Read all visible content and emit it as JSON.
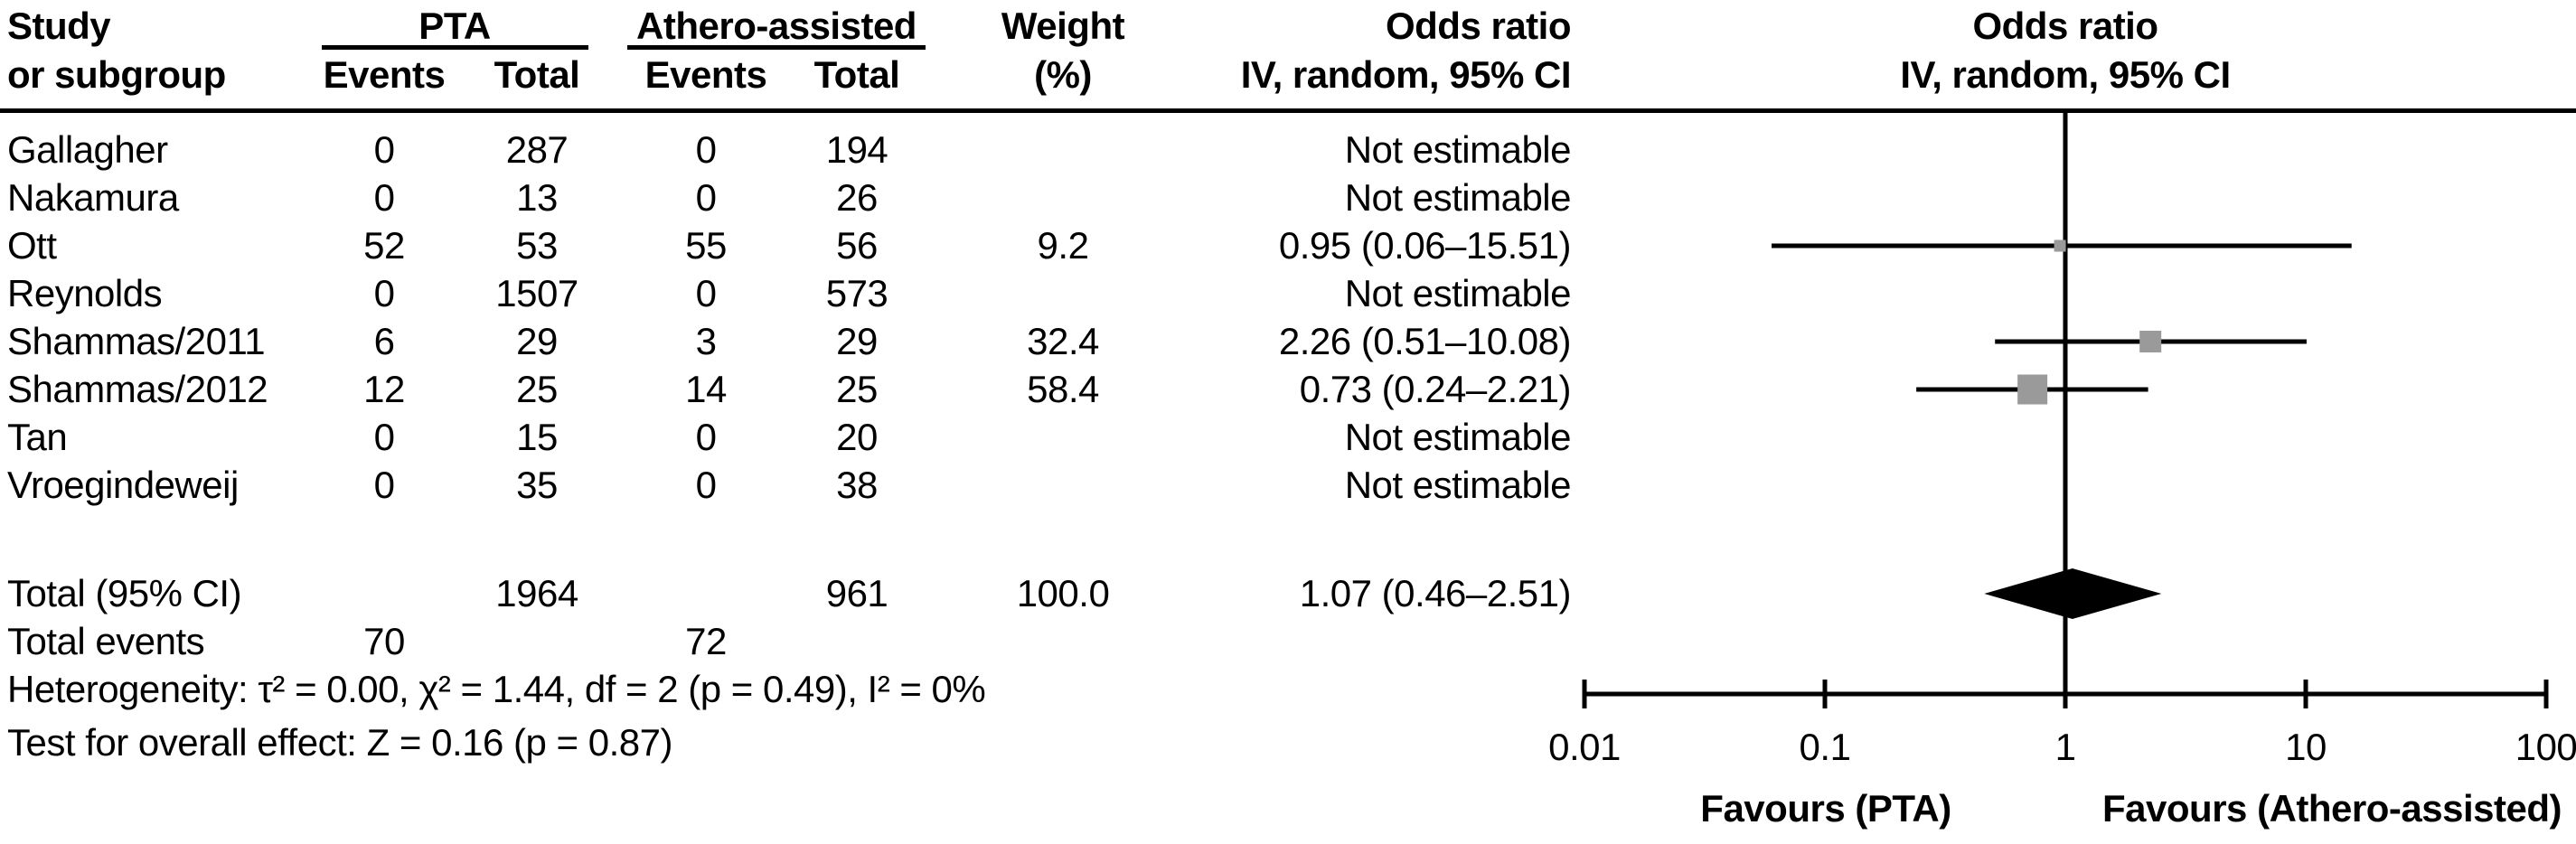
{
  "figure": {
    "header": {
      "study_line1": "Study",
      "study_line2": "or subgroup",
      "group_pta": "PTA",
      "group_athero": "Athero-assisted",
      "col_events": "Events",
      "col_total": "Total",
      "weight_line1": "Weight",
      "weight_line2": "(%)",
      "or_line1": "Odds ratio",
      "or_line2": "IV, random, 95% CI",
      "plot_header_line1": "Odds ratio",
      "plot_header_line2": "IV, random, 95% CI"
    },
    "stats": {
      "heterogeneity": "Heterogeneity: τ² = 0.00, χ² = 1.44, df = 2 (p = 0.49), I² = 0%",
      "overall_effect": "Test for overall effect: Z = 0.16 (p = 0.87)"
    },
    "axis": {
      "favours_left": "Favours (PTA)",
      "favours_right": "Favours (Athero-assisted)"
    },
    "colors": {
      "text": "#000000",
      "line": "#000000",
      "square": "#9a9a9a",
      "diamond": "#000000",
      "background": "#ffffff"
    }
  },
  "chart_data": {
    "type": "scatter",
    "variant": "forest-plot",
    "effect_measure": "Odds ratio",
    "model": "IV, random, 95% CI",
    "x_scale": "log",
    "x_range": [
      0.01,
      100
    ],
    "x_ticks": [
      "0.01",
      "0.1",
      "1",
      "10",
      "100"
    ],
    "x_tick_values": [
      0.01,
      0.1,
      1,
      10,
      100
    ],
    "studies": [
      {
        "name": "Gallagher",
        "pta_events": "0",
        "pta_total": "287",
        "ath_events": "0",
        "ath_total": "194",
        "weight_text": "",
        "weight_pct": null,
        "or": null,
        "ci_low": null,
        "ci_high": null,
        "or_text": "Not estimable"
      },
      {
        "name": "Nakamura",
        "pta_events": "0",
        "pta_total": "13",
        "ath_events": "0",
        "ath_total": "26",
        "weight_text": "",
        "weight_pct": null,
        "or": null,
        "ci_low": null,
        "ci_high": null,
        "or_text": "Not estimable"
      },
      {
        "name": "Ott",
        "pta_events": "52",
        "pta_total": "53",
        "ath_events": "55",
        "ath_total": "56",
        "weight_text": "9.2",
        "weight_pct": 9.2,
        "or": 0.95,
        "ci_low": 0.06,
        "ci_high": 15.51,
        "or_text": "0.95 (0.06–15.51)"
      },
      {
        "name": "Reynolds",
        "pta_events": "0",
        "pta_total": "1507",
        "ath_events": "0",
        "ath_total": "573",
        "weight_text": "",
        "weight_pct": null,
        "or": null,
        "ci_low": null,
        "ci_high": null,
        "or_text": "Not estimable"
      },
      {
        "name": "Shammas/2011",
        "pta_events": "6",
        "pta_total": "29",
        "ath_events": "3",
        "ath_total": "29",
        "weight_text": "32.4",
        "weight_pct": 32.4,
        "or": 2.26,
        "ci_low": 0.51,
        "ci_high": 10.08,
        "or_text": "2.26 (0.51–10.08)"
      },
      {
        "name": "Shammas/2012",
        "pta_events": "12",
        "pta_total": "25",
        "ath_events": "14",
        "ath_total": "25",
        "weight_text": "58.4",
        "weight_pct": 58.4,
        "or": 0.73,
        "ci_low": 0.24,
        "ci_high": 2.21,
        "or_text": "0.73 (0.24–2.21)"
      },
      {
        "name": "Tan",
        "pta_events": "0",
        "pta_total": "15",
        "ath_events": "0",
        "ath_total": "20",
        "weight_text": "",
        "weight_pct": null,
        "or": null,
        "ci_low": null,
        "ci_high": null,
        "or_text": "Not estimable"
      },
      {
        "name": "Vroegindeweij",
        "pta_events": "0",
        "pta_total": "35",
        "ath_events": "0",
        "ath_total": "38",
        "weight_text": "",
        "weight_pct": null,
        "or": null,
        "ci_low": null,
        "ci_high": null,
        "or_text": "Not estimable"
      }
    ],
    "total": {
      "label": "Total (95% CI)",
      "pta_total": "1964",
      "ath_total": "961",
      "weight_text": "100.0",
      "weight_pct": 100.0,
      "or": 1.07,
      "ci_low": 0.46,
      "ci_high": 2.51,
      "or_text": "1.07 (0.46–2.51)",
      "events_label": "Total events",
      "pta_events": "70",
      "ath_events": "72"
    }
  }
}
